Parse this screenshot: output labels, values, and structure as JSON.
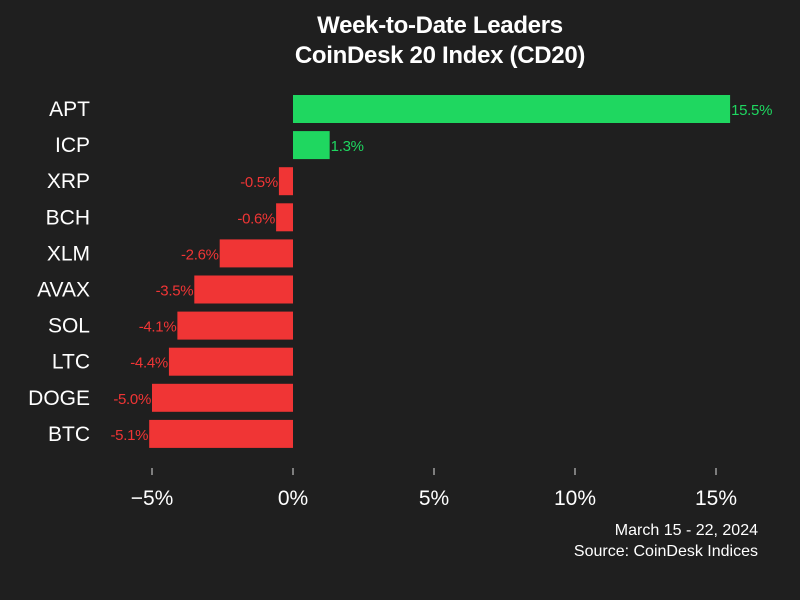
{
  "colors": {
    "background": "#1f1f1f",
    "positive": "#1fd760",
    "negative": "#f03535",
    "text": "#ffffff"
  },
  "chart_data": {
    "type": "bar",
    "orientation": "horizontal",
    "title": "Week-to-Date Leaders",
    "subtitle": "CoinDesk 20 Index (CD20)",
    "categories": [
      "APT",
      "ICP",
      "XRP",
      "BCH",
      "XLM",
      "AVAX",
      "SOL",
      "LTC",
      "DOGE",
      "BTC"
    ],
    "values": [
      15.5,
      1.3,
      -0.5,
      -0.6,
      -2.6,
      -3.5,
      -4.1,
      -4.4,
      -5.0,
      -5.1
    ],
    "value_labels": [
      "15.5%",
      "1.3%",
      "-0.5%",
      "-0.6%",
      "-2.6%",
      "-3.5%",
      "-4.1%",
      "-4.4%",
      "-5.0%",
      "-5.1%"
    ],
    "xlim": [
      -6.5,
      17.5
    ],
    "xticks": [
      -5,
      0,
      5,
      10,
      15
    ],
    "xtick_labels": [
      "−5%",
      "0%",
      "5%",
      "10%",
      "15%"
    ],
    "xlabel": "",
    "ylabel": "",
    "grid": false
  },
  "footer": {
    "date_range": "March 15 - 22, 2024",
    "source": "Source: CoinDesk Indices"
  }
}
